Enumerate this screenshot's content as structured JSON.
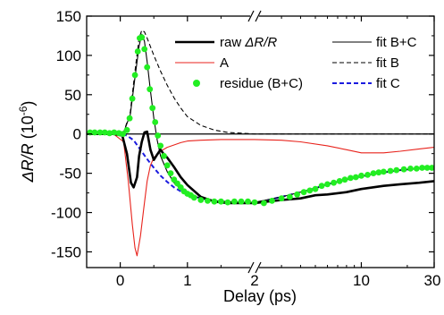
{
  "chart_data": {
    "type": "line",
    "xlabel": "Delay (ps)",
    "ylabel_main": "ΔR/R",
    "ylabel_unit": "(10",
    "ylabel_exp": "-6",
    "ylabel_close": ")",
    "ylim": [
      -170,
      150
    ],
    "yticks": [
      150,
      100,
      50,
      0,
      -50,
      -100,
      -150
    ],
    "y_tick_labels": [
      "150",
      "100",
      "50",
      "0",
      "-50",
      "-100",
      "-150"
    ],
    "x_axis_break": 2,
    "x_segments": [
      {
        "scale": "linear",
        "range": [
          -0.5,
          2
        ],
        "ticks": [
          0,
          1,
          2
        ],
        "tick_labels": [
          "0",
          "1",
          "2"
        ]
      },
      {
        "scale": "log",
        "range": [
          2,
          30
        ],
        "ticks": [
          10,
          30
        ],
        "tick_labels": [
          "10",
          "30"
        ]
      }
    ],
    "legend": {
      "col1": [
        {
          "series": "raw",
          "prefix": "raw ",
          "italic": "ΔR/R"
        },
        {
          "series": "A",
          "prefix": "A",
          "italic": ""
        },
        {
          "series": "residue",
          "prefix": "residue (B+C)",
          "italic": ""
        }
      ],
      "col2": [
        {
          "series": "fitBC",
          "label": "fit B+C"
        },
        {
          "series": "fitB",
          "label": "fit B"
        },
        {
          "series": "fitC",
          "label": "fit C"
        }
      ]
    },
    "colors": {
      "raw": "#000000",
      "A": "#e8231c",
      "residue": "#22ee22",
      "fitBC": "#000000",
      "fitB": "#000000",
      "fitC": "#1a1adf"
    },
    "series": [
      {
        "key": "raw",
        "points": [
          [
            -0.5,
            0
          ],
          [
            -0.1,
            0
          ],
          [
            0.03,
            -2
          ],
          [
            0.1,
            -25
          ],
          [
            0.16,
            -62
          ],
          [
            0.2,
            -68
          ],
          [
            0.25,
            -55
          ],
          [
            0.28,
            -28
          ],
          [
            0.32,
            -10
          ],
          [
            0.36,
            2
          ],
          [
            0.4,
            3
          ],
          [
            0.45,
            -20
          ],
          [
            0.5,
            -33
          ],
          [
            0.55,
            -26
          ],
          [
            0.6,
            -20
          ],
          [
            0.65,
            -26
          ],
          [
            0.7,
            -30
          ],
          [
            0.8,
            -42
          ],
          [
            0.9,
            -55
          ],
          [
            1.0,
            -65
          ],
          [
            1.2,
            -80
          ],
          [
            1.4,
            -86
          ],
          [
            1.6,
            -88
          ],
          [
            1.8,
            -88
          ],
          [
            2.0,
            -88
          ],
          [
            3,
            -84
          ],
          [
            4,
            -82
          ],
          [
            5,
            -78
          ],
          [
            6,
            -77
          ],
          [
            8,
            -74
          ],
          [
            10,
            -70
          ],
          [
            14,
            -66
          ],
          [
            18,
            -64
          ],
          [
            24,
            -62
          ],
          [
            30,
            -60
          ]
        ]
      },
      {
        "key": "A",
        "points": [
          [
            -0.5,
            0
          ],
          [
            -0.1,
            0
          ],
          [
            0.05,
            -10
          ],
          [
            0.12,
            -60
          ],
          [
            0.18,
            -115
          ],
          [
            0.22,
            -145
          ],
          [
            0.25,
            -155
          ],
          [
            0.3,
            -130
          ],
          [
            0.35,
            -95
          ],
          [
            0.4,
            -60
          ],
          [
            0.45,
            -40
          ],
          [
            0.5,
            -30
          ],
          [
            0.6,
            -22
          ],
          [
            0.7,
            -17
          ],
          [
            0.8,
            -14
          ],
          [
            0.9,
            -11
          ],
          [
            1.0,
            -9
          ],
          [
            1.2,
            -8
          ],
          [
            1.5,
            -7
          ],
          [
            2.0,
            -7
          ],
          [
            3,
            -8
          ],
          [
            4,
            -10
          ],
          [
            6,
            -15
          ],
          [
            8,
            -20
          ],
          [
            10,
            -24
          ],
          [
            14,
            -24
          ],
          [
            18,
            -22
          ],
          [
            24,
            -19
          ],
          [
            30,
            -17
          ]
        ]
      },
      {
        "key": "fitBC",
        "points": [
          [
            -0.5,
            0
          ],
          [
            0.05,
            2
          ],
          [
            0.15,
            25
          ],
          [
            0.22,
            72
          ],
          [
            0.28,
            112
          ],
          [
            0.32,
            127
          ],
          [
            0.36,
            118
          ],
          [
            0.4,
            92
          ],
          [
            0.45,
            55
          ],
          [
            0.5,
            20
          ],
          [
            0.55,
            -8
          ],
          [
            0.6,
            -28
          ],
          [
            0.7,
            -48
          ],
          [
            0.8,
            -62
          ],
          [
            0.9,
            -70
          ],
          [
            1.0,
            -76
          ],
          [
            1.2,
            -82
          ],
          [
            1.4,
            -85
          ],
          [
            1.6,
            -86
          ],
          [
            1.8,
            -87
          ],
          [
            2.0,
            -87
          ],
          [
            3,
            -80
          ],
          [
            4,
            -74
          ],
          [
            5,
            -69
          ],
          [
            6,
            -64
          ],
          [
            8,
            -58
          ],
          [
            10,
            -54
          ],
          [
            14,
            -49
          ],
          [
            18,
            -46
          ],
          [
            24,
            -44
          ],
          [
            30,
            -43
          ]
        ]
      },
      {
        "key": "fitB",
        "points": [
          [
            -0.5,
            0
          ],
          [
            0.05,
            2
          ],
          [
            0.15,
            28
          ],
          [
            0.22,
            80
          ],
          [
            0.28,
            122
          ],
          [
            0.32,
            132
          ],
          [
            0.36,
            130
          ],
          [
            0.4,
            122
          ],
          [
            0.5,
            100
          ],
          [
            0.6,
            80
          ],
          [
            0.7,
            62
          ],
          [
            0.8,
            46
          ],
          [
            0.9,
            33
          ],
          [
            1.0,
            22
          ],
          [
            1.2,
            11
          ],
          [
            1.4,
            5
          ],
          [
            1.6,
            2
          ],
          [
            1.8,
            1
          ],
          [
            2.0,
            0
          ],
          [
            30,
            0
          ]
        ]
      },
      {
        "key": "fitC",
        "points": [
          [
            -0.5,
            0
          ],
          [
            0.0,
            0
          ],
          [
            0.1,
            -2
          ],
          [
            0.2,
            -8
          ],
          [
            0.3,
            -20
          ],
          [
            0.4,
            -32
          ],
          [
            0.5,
            -43
          ],
          [
            0.6,
            -53
          ],
          [
            0.7,
            -61
          ],
          [
            0.8,
            -68
          ],
          [
            0.9,
            -73
          ],
          [
            1.0,
            -77
          ],
          [
            1.2,
            -82
          ],
          [
            1.4,
            -85
          ],
          [
            1.6,
            -87
          ],
          [
            1.8,
            -88
          ],
          [
            2.0,
            -88
          ],
          [
            3,
            -80
          ],
          [
            4,
            -74
          ],
          [
            5,
            -69
          ],
          [
            6,
            -64
          ],
          [
            8,
            -58
          ],
          [
            10,
            -54
          ],
          [
            14,
            -49
          ],
          [
            18,
            -46
          ],
          [
            24,
            -44
          ],
          [
            30,
            -43
          ]
        ]
      },
      {
        "key": "residue",
        "points": [
          [
            -0.45,
            2
          ],
          [
            -0.38,
            2
          ],
          [
            -0.3,
            2
          ],
          [
            -0.23,
            2
          ],
          [
            -0.16,
            1
          ],
          [
            -0.09,
            2
          ],
          [
            -0.02,
            1
          ],
          [
            0.04,
            0
          ],
          [
            0.1,
            5
          ],
          [
            0.14,
            20
          ],
          [
            0.18,
            45
          ],
          [
            0.22,
            75
          ],
          [
            0.26,
            105
          ],
          [
            0.29,
            122
          ],
          [
            0.32,
            123
          ],
          [
            0.36,
            108
          ],
          [
            0.4,
            85
          ],
          [
            0.44,
            57
          ],
          [
            0.48,
            33
          ],
          [
            0.52,
            15
          ],
          [
            0.56,
            -2
          ],
          [
            0.6,
            -15
          ],
          [
            0.65,
            -28
          ],
          [
            0.7,
            -40
          ],
          [
            0.75,
            -50
          ],
          [
            0.8,
            -58
          ],
          [
            0.85,
            -63
          ],
          [
            0.9,
            -68
          ],
          [
            0.95,
            -73
          ],
          [
            1.0,
            -76
          ],
          [
            1.05,
            -78
          ],
          [
            1.1,
            -81
          ],
          [
            1.2,
            -84
          ],
          [
            1.3,
            -85
          ],
          [
            1.4,
            -86
          ],
          [
            1.5,
            -86
          ],
          [
            1.6,
            -87
          ],
          [
            1.7,
            -86
          ],
          [
            1.8,
            -86
          ],
          [
            1.9,
            -86
          ],
          [
            2.0,
            -87
          ],
          [
            2.3,
            -88
          ],
          [
            2.6,
            -85
          ],
          [
            3.0,
            -82
          ],
          [
            3.4,
            -80
          ],
          [
            3.8,
            -77
          ],
          [
            4.2,
            -74
          ],
          [
            4.6,
            -72
          ],
          [
            5.0,
            -70
          ],
          [
            5.5,
            -66
          ],
          [
            6.0,
            -64
          ],
          [
            6.6,
            -62
          ],
          [
            7.2,
            -60
          ],
          [
            7.8,
            -58
          ],
          [
            8.5,
            -56
          ],
          [
            9.2,
            -55
          ],
          [
            10,
            -53
          ],
          [
            11,
            -52
          ],
          [
            12,
            -50
          ],
          [
            13,
            -49
          ],
          [
            14,
            -48
          ],
          [
            15.5,
            -47
          ],
          [
            17,
            -46
          ],
          [
            19,
            -45
          ],
          [
            21,
            -44
          ],
          [
            23,
            -44
          ],
          [
            25,
            -43
          ],
          [
            27,
            -43
          ],
          [
            29,
            -43
          ]
        ]
      }
    ]
  }
}
